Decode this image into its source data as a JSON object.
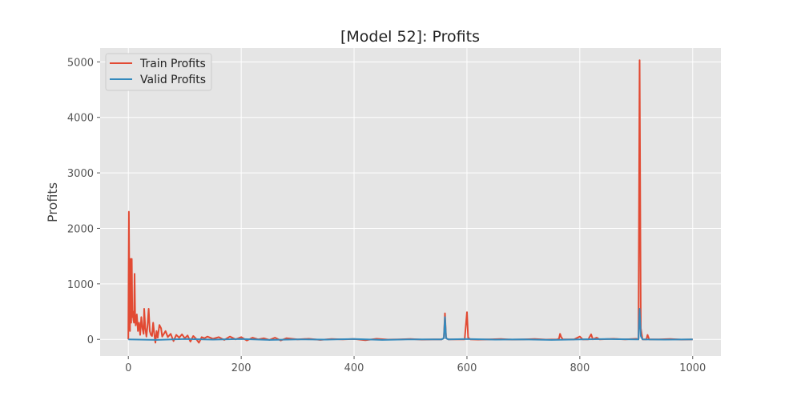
{
  "chart_data": {
    "type": "line",
    "title": "[Model 52]: Profits",
    "xlabel": "",
    "ylabel": "Profits",
    "xlim": [
      -50,
      1050
    ],
    "ylim": [
      -300,
      5250
    ],
    "xticks": [
      0,
      200,
      400,
      600,
      800,
      1000
    ],
    "yticks": [
      0,
      1000,
      2000,
      3000,
      4000,
      5000
    ],
    "grid": true,
    "legend_position": "top-left",
    "background": "#e5e5e5",
    "series": [
      {
        "name": "Train Profits",
        "color": "#e24a33",
        "points": [
          [
            0,
            0
          ],
          [
            1,
            2300
          ],
          [
            2,
            800
          ],
          [
            3,
            150
          ],
          [
            4,
            1450
          ],
          [
            5,
            300
          ],
          [
            6,
            1450
          ],
          [
            7,
            400
          ],
          [
            8,
            500
          ],
          [
            9,
            350
          ],
          [
            10,
            300
          ],
          [
            11,
            1180
          ],
          [
            12,
            420
          ],
          [
            13,
            250
          ],
          [
            15,
            450
          ],
          [
            17,
            150
          ],
          [
            19,
            300
          ],
          [
            21,
            80
          ],
          [
            23,
            400
          ],
          [
            25,
            200
          ],
          [
            27,
            100
          ],
          [
            28,
            550
          ],
          [
            30,
            200
          ],
          [
            32,
            50
          ],
          [
            34,
            250
          ],
          [
            36,
            550
          ],
          [
            38,
            150
          ],
          [
            40,
            80
          ],
          [
            42,
            60
          ],
          [
            44,
            300
          ],
          [
            46,
            100
          ],
          [
            48,
            -60
          ],
          [
            50,
            150
          ],
          [
            52,
            30
          ],
          [
            55,
            260
          ],
          [
            58,
            200
          ],
          [
            60,
            50
          ],
          [
            63,
            100
          ],
          [
            66,
            150
          ],
          [
            70,
            40
          ],
          [
            75,
            100
          ],
          [
            80,
            -30
          ],
          [
            85,
            80
          ],
          [
            90,
            30
          ],
          [
            95,
            90
          ],
          [
            100,
            20
          ],
          [
            105,
            70
          ],
          [
            110,
            -40
          ],
          [
            115,
            60
          ],
          [
            120,
            10
          ],
          [
            125,
            -60
          ],
          [
            130,
            40
          ],
          [
            135,
            20
          ],
          [
            140,
            50
          ],
          [
            150,
            10
          ],
          [
            160,
            40
          ],
          [
            170,
            -10
          ],
          [
            180,
            50
          ],
          [
            190,
            0
          ],
          [
            200,
            40
          ],
          [
            210,
            -20
          ],
          [
            220,
            30
          ],
          [
            230,
            0
          ],
          [
            240,
            20
          ],
          [
            250,
            -10
          ],
          [
            260,
            30
          ],
          [
            270,
            -20
          ],
          [
            280,
            20
          ],
          [
            300,
            0
          ],
          [
            320,
            10
          ],
          [
            340,
            -10
          ],
          [
            360,
            5
          ],
          [
            380,
            0
          ],
          [
            400,
            5
          ],
          [
            420,
            -15
          ],
          [
            440,
            10
          ],
          [
            460,
            -5
          ],
          [
            480,
            0
          ],
          [
            500,
            5
          ],
          [
            520,
            -5
          ],
          [
            540,
            0
          ],
          [
            555,
            0
          ],
          [
            559,
            20
          ],
          [
            561,
            470
          ],
          [
            563,
            20
          ],
          [
            567,
            0
          ],
          [
            580,
            0
          ],
          [
            596,
            0
          ],
          [
            600,
            490
          ],
          [
            602,
            30
          ],
          [
            606,
            0
          ],
          [
            620,
            -5
          ],
          [
            640,
            0
          ],
          [
            660,
            5
          ],
          [
            680,
            -5
          ],
          [
            700,
            0
          ],
          [
            720,
            5
          ],
          [
            740,
            -5
          ],
          [
            760,
            0
          ],
          [
            763,
            10
          ],
          [
            765,
            100
          ],
          [
            767,
            40
          ],
          [
            770,
            0
          ],
          [
            790,
            0
          ],
          [
            800,
            50
          ],
          [
            805,
            0
          ],
          [
            815,
            0
          ],
          [
            820,
            90
          ],
          [
            823,
            0
          ],
          [
            830,
            30
          ],
          [
            835,
            0
          ],
          [
            860,
            10
          ],
          [
            880,
            0
          ],
          [
            900,
            10
          ],
          [
            904,
            0
          ],
          [
            906,
            5030
          ],
          [
            908,
            200
          ],
          [
            911,
            0
          ],
          [
            918,
            0
          ],
          [
            920,
            80
          ],
          [
            923,
            0
          ],
          [
            940,
            0
          ],
          [
            960,
            5
          ],
          [
            980,
            -5
          ],
          [
            1000,
            0
          ]
        ]
      },
      {
        "name": "Valid Profits",
        "color": "#348abd",
        "points": [
          [
            0,
            0
          ],
          [
            50,
            -10
          ],
          [
            100,
            5
          ],
          [
            150,
            -5
          ],
          [
            200,
            5
          ],
          [
            250,
            -10
          ],
          [
            300,
            0
          ],
          [
            350,
            -5
          ],
          [
            400,
            5
          ],
          [
            450,
            -10
          ],
          [
            500,
            0
          ],
          [
            555,
            0
          ],
          [
            559,
            20
          ],
          [
            561,
            400
          ],
          [
            563,
            20
          ],
          [
            567,
            0
          ],
          [
            600,
            5
          ],
          [
            650,
            -5
          ],
          [
            700,
            0
          ],
          [
            750,
            -10
          ],
          [
            800,
            0
          ],
          [
            850,
            5
          ],
          [
            900,
            0
          ],
          [
            904,
            0
          ],
          [
            906,
            550
          ],
          [
            908,
            60
          ],
          [
            911,
            0
          ],
          [
            950,
            -5
          ],
          [
            1000,
            0
          ]
        ]
      }
    ]
  }
}
